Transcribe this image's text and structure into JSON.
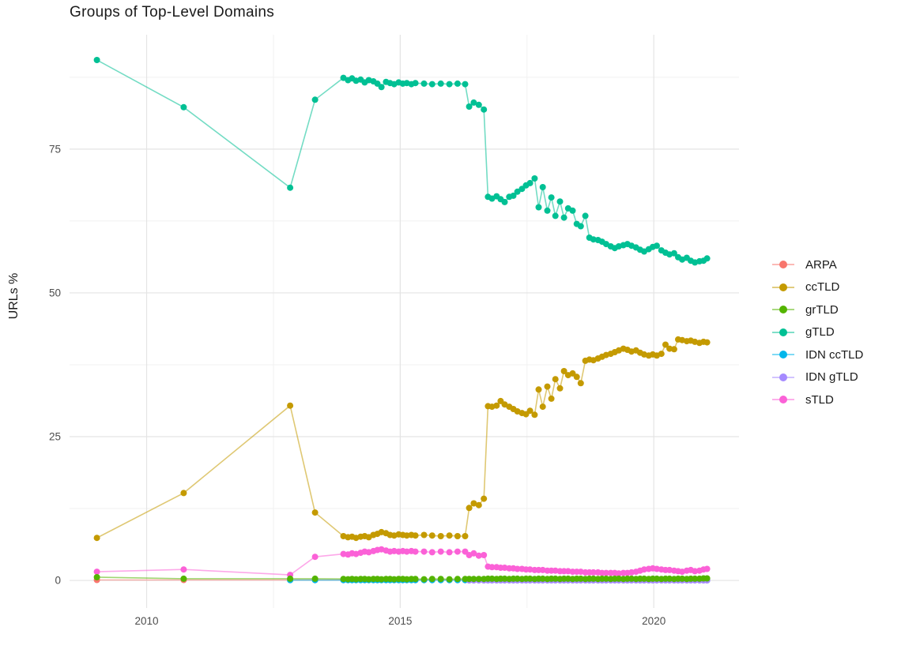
{
  "title": "Groups of Top-Level Domains",
  "y_axis": {
    "label": "URLs %",
    "ticks": [
      0,
      25,
      50,
      75
    ],
    "minor_ticks": [
      12.5,
      37.5,
      62.5,
      87.5
    ],
    "range": [
      -4.8,
      94.9
    ]
  },
  "x_axis": {
    "ticks": [
      2010,
      2015,
      2020
    ],
    "minor_ticks": [
      2012.5,
      2017.5
    ],
    "range": [
      2008.48,
      2021.68
    ]
  },
  "legend": {
    "entries": [
      {
        "label": "ARPA",
        "color": "#F8766D"
      },
      {
        "label": "ccTLD",
        "color": "#C49A00"
      },
      {
        "label": "grTLD",
        "color": "#53B400"
      },
      {
        "label": "gTLD",
        "color": "#00C094"
      },
      {
        "label": "IDN ccTLD",
        "color": "#00B6EB"
      },
      {
        "label": "IDN gTLD",
        "color": "#A58AFF"
      },
      {
        "label": "sTLD",
        "color": "#FB61D7"
      }
    ]
  },
  "chart_data": {
    "type": "line",
    "title": "Groups of Top-Level Domains",
    "xlabel": "",
    "ylabel": "URLs %",
    "grid": true,
    "legend_position": "right",
    "x_common": [
      2009.02,
      2010.73,
      2012.83,
      2013.32,
      2013.88,
      2013.97,
      2014.05,
      2014.13,
      2014.22,
      2014.3,
      2014.38,
      2014.47,
      2014.55,
      2014.63,
      2014.72,
      2014.8,
      2014.88,
      2014.97,
      2015.05,
      2015.13,
      2015.22,
      2015.3,
      2015.47,
      2015.63,
      2015.8,
      2015.97,
      2016.13,
      2016.28,
      2016.36,
      2016.45,
      2016.55,
      2016.65,
      2016.73,
      2016.81,
      2016.9,
      2016.98,
      2017.06,
      2017.15,
      2017.23,
      2017.31,
      2017.4,
      2017.48,
      2017.56,
      2017.65,
      2017.73,
      2017.81,
      2017.9,
      2017.98,
      2018.06,
      2018.15,
      2018.23,
      2018.31,
      2018.4,
      2018.48,
      2018.56,
      2018.65,
      2018.73,
      2018.81,
      2018.9,
      2018.98,
      2019.06,
      2019.15,
      2019.23,
      2019.31,
      2019.4,
      2019.48,
      2019.56,
      2019.65,
      2019.73,
      2019.81,
      2019.9,
      2019.98,
      2020.06,
      2020.15,
      2020.23,
      2020.31,
      2020.4,
      2020.48,
      2020.56,
      2020.65,
      2020.73,
      2020.81,
      2020.9,
      2020.98,
      2021.05
    ],
    "series": [
      {
        "name": "ARPA",
        "color": "#F8766D",
        "x": "common",
        "x_start_index": 0,
        "y_constant": 0.08
      },
      {
        "name": "ccTLD",
        "color": "#C49A00",
        "x": "common",
        "x_start_index": 0,
        "y": [
          7.4,
          15.2,
          30.4,
          11.8,
          7.7,
          7.5,
          7.6,
          7.4,
          7.6,
          7.7,
          7.5,
          7.9,
          8.1,
          8.4,
          8.2,
          7.9,
          7.8,
          8.0,
          7.9,
          7.8,
          7.9,
          7.8,
          7.9,
          7.8,
          7.7,
          7.8,
          7.7,
          7.7,
          12.6,
          13.4,
          13.1,
          14.2,
          30.3,
          30.2,
          30.4,
          31.2,
          30.6,
          30.2,
          29.8,
          29.4,
          29.1,
          28.9,
          29.5,
          28.8,
          33.2,
          30.2,
          33.7,
          31.6,
          35.0,
          33.4,
          36.4,
          35.7,
          36.0,
          35.4,
          34.3,
          38.2,
          38.4,
          38.3,
          38.6,
          38.9,
          39.2,
          39.4,
          39.7,
          40.0,
          40.3,
          40.1,
          39.8,
          40.0,
          39.6,
          39.3,
          39.1,
          39.3,
          39.1,
          39.4,
          41.0,
          40.3,
          40.2,
          41.9,
          41.8,
          41.6,
          41.7,
          41.5,
          41.3,
          41.5,
          41.4
        ]
      },
      {
        "name": "grTLD",
        "color": "#53B400",
        "x": "common",
        "x_start_index": 0,
        "y": [
          0.55,
          0.3,
          0.3,
          0.3,
          0.25,
          0.2,
          0.25,
          0.2,
          0.25,
          0.25,
          0.2,
          0.25,
          0.25,
          0.2,
          0.25,
          0.25,
          0.2,
          0.25,
          0.25,
          0.2,
          0.25,
          0.25,
          0.2,
          0.25,
          0.25,
          0.2,
          0.25,
          0.25,
          0.25,
          0.25,
          0.25,
          0.25,
          0.3,
          0.3,
          0.25,
          0.3,
          0.3,
          0.25,
          0.3,
          0.3,
          0.25,
          0.3,
          0.3,
          0.25,
          0.3,
          0.3,
          0.25,
          0.3,
          0.3,
          0.25,
          0.3,
          0.3,
          0.25,
          0.3,
          0.3,
          0.25,
          0.3,
          0.3,
          0.25,
          0.3,
          0.3,
          0.25,
          0.3,
          0.3,
          0.25,
          0.3,
          0.3,
          0.25,
          0.3,
          0.3,
          0.25,
          0.3,
          0.3,
          0.25,
          0.3,
          0.3,
          0.25,
          0.3,
          0.3,
          0.25,
          0.3,
          0.3,
          0.3,
          0.35,
          0.35
        ]
      },
      {
        "name": "gTLD",
        "color": "#00C094",
        "x": "common",
        "x_start_index": 0,
        "y": [
          90.5,
          82.3,
          68.3,
          83.6,
          87.4,
          87.0,
          87.3,
          86.9,
          87.1,
          86.6,
          87.0,
          86.8,
          86.4,
          85.8,
          86.7,
          86.5,
          86.3,
          86.6,
          86.4,
          86.5,
          86.3,
          86.5,
          86.4,
          86.3,
          86.4,
          86.3,
          86.4,
          86.3,
          82.4,
          83.1,
          82.7,
          81.9,
          66.7,
          66.4,
          66.8,
          66.3,
          65.8,
          66.7,
          66.9,
          67.6,
          68.1,
          68.7,
          69.1,
          69.9,
          64.9,
          68.4,
          64.3,
          66.6,
          63.4,
          65.9,
          63.1,
          64.7,
          64.3,
          62.0,
          61.6,
          63.4,
          59.6,
          59.3,
          59.2,
          58.9,
          58.5,
          58.1,
          57.8,
          58.1,
          58.3,
          58.5,
          58.2,
          57.9,
          57.5,
          57.2,
          57.6,
          58.0,
          58.2,
          57.4,
          57.0,
          56.7,
          56.9,
          56.2,
          55.8,
          56.1,
          55.6,
          55.3,
          55.5,
          55.6,
          56.0
        ]
      },
      {
        "name": "IDN ccTLD",
        "color": "#00B6EB",
        "x": "common",
        "x_start_index": 2,
        "y_constant": 0.05
      },
      {
        "name": "IDN gTLD",
        "color": "#A58AFF",
        "x": "common",
        "x_start_index": 28,
        "y_constant": 0.0
      },
      {
        "name": "sTLD",
        "color": "#FB61D7",
        "x": "common",
        "x_start_index": 0,
        "y": [
          1.5,
          1.9,
          0.95,
          4.1,
          4.6,
          4.5,
          4.7,
          4.6,
          4.8,
          5.0,
          4.9,
          5.1,
          5.3,
          5.4,
          5.2,
          5.0,
          5.1,
          5.0,
          5.1,
          5.0,
          5.1,
          5.0,
          5.0,
          4.9,
          5.0,
          4.9,
          5.0,
          5.0,
          4.4,
          4.7,
          4.3,
          4.4,
          2.4,
          2.3,
          2.3,
          2.2,
          2.2,
          2.1,
          2.1,
          2.0,
          2.0,
          1.9,
          1.9,
          1.8,
          1.8,
          1.8,
          1.7,
          1.7,
          1.7,
          1.6,
          1.6,
          1.6,
          1.5,
          1.5,
          1.5,
          1.4,
          1.4,
          1.4,
          1.4,
          1.3,
          1.3,
          1.3,
          1.3,
          1.2,
          1.3,
          1.3,
          1.4,
          1.5,
          1.7,
          1.9,
          2.0,
          2.1,
          2.0,
          1.9,
          1.8,
          1.8,
          1.7,
          1.6,
          1.5,
          1.7,
          1.8,
          1.6,
          1.7,
          1.9,
          2.0
        ]
      }
    ],
    "draw_order": [
      "ARPA",
      "ccTLD",
      "IDN ccTLD",
      "IDN gTLD",
      "sTLD",
      "gTLD",
      "grTLD"
    ],
    "style": {
      "major_grid_color": "#E4E4E4",
      "minor_grid_color": "#F1F1F1",
      "line_opacity": 0.55,
      "line_width": 1.6,
      "point_radius": 4
    }
  }
}
